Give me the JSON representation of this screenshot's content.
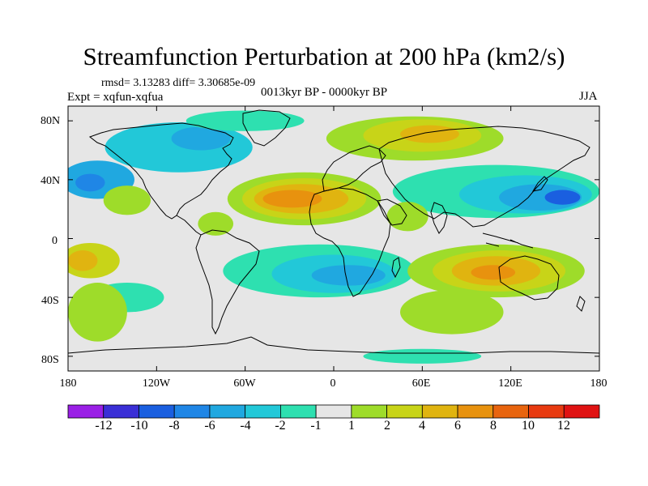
{
  "title": "Streamfunction Perturbation at 200 hPa (km2/s)",
  "stats": "rmsd= 3.13283 diff= 3.30685e-09",
  "experiment": "Expt = xqfun-xqfua",
  "period": "0013kyr BP - 0000kyr BP",
  "season": "JJA",
  "lat_labels": [
    "80N",
    "40N",
    "0",
    "40S",
    "80S"
  ],
  "lon_labels": [
    "180",
    "120W",
    "60W",
    "0",
    "60E",
    "120E",
    "180"
  ],
  "colorbar": {
    "labels": [
      "-12",
      "-10",
      "-8",
      "-6",
      "-4",
      "-2",
      "-1",
      "1",
      "2",
      "4",
      "6",
      "8",
      "10",
      "12"
    ],
    "colors": [
      "#9a1fe6",
      "#3a2fd6",
      "#1a5fe0",
      "#1f86e6",
      "#20a8e0",
      "#22c8d8",
      "#2ee0b0",
      "#e6e6e6",
      "#9edc2a",
      "#c8d418",
      "#e0b410",
      "#e8920e",
      "#e8640e",
      "#e83a10",
      "#e01212"
    ]
  },
  "map": {
    "background_color": "#e6e6e6",
    "regions": [
      {
        "name": "north-pacific-low",
        "level": 4,
        "lon": -160,
        "lat": 40,
        "rlon": 25,
        "rlat": 13
      },
      {
        "name": "north-pacific-low-core",
        "level": 3,
        "lon": -165,
        "lat": 38,
        "rlon": 10,
        "rlat": 6
      },
      {
        "name": "northeast-pacific-green",
        "level": 8,
        "lon": -140,
        "lat": 26,
        "rlon": 16,
        "rlat": 10
      },
      {
        "name": "north-america-low",
        "level": 5,
        "lon": -105,
        "lat": 62,
        "rlon": 50,
        "rlat": 17
      },
      {
        "name": "canada-low-core",
        "level": 4,
        "lon": -90,
        "lat": 68,
        "rlon": 20,
        "rlat": 8
      },
      {
        "name": "arctic-green",
        "level": 6,
        "lon": -60,
        "lat": 80,
        "rlon": 40,
        "rlat": 7
      },
      {
        "name": "caribbean-green",
        "level": 8,
        "lon": -80,
        "lat": 10,
        "rlon": 12,
        "rlat": 8
      },
      {
        "name": "atlantic-high-outer",
        "level": 8,
        "lon": -20,
        "lat": 27,
        "rlon": 52,
        "rlat": 18
      },
      {
        "name": "atlantic-high",
        "level": 9,
        "lon": -20,
        "lat": 27,
        "rlon": 42,
        "rlat": 14
      },
      {
        "name": "atlantic-high-mid",
        "level": 10,
        "lon": -22,
        "lat": 27,
        "rlon": 32,
        "rlat": 10
      },
      {
        "name": "atlantic-high-core",
        "level": 11,
        "lon": -28,
        "lat": 27,
        "rlon": 20,
        "rlat": 6
      },
      {
        "name": "eurasia-high-outer",
        "level": 8,
        "lon": 55,
        "lat": 68,
        "rlon": 60,
        "rlat": 15
      },
      {
        "name": "eurasia-high",
        "level": 9,
        "lon": 60,
        "lat": 70,
        "rlon": 40,
        "rlat": 11
      },
      {
        "name": "eurasia-high-core",
        "level": 10,
        "lon": 65,
        "lat": 71,
        "rlon": 20,
        "rlat": 6
      },
      {
        "name": "asia-low-outer",
        "level": 6,
        "lon": 110,
        "lat": 32,
        "rlon": 70,
        "rlat": 18
      },
      {
        "name": "asia-low",
        "level": 5,
        "lon": 130,
        "lat": 30,
        "rlon": 45,
        "rlat": 13
      },
      {
        "name": "asia-low-mid",
        "level": 4,
        "lon": 140,
        "lat": 28,
        "rlon": 28,
        "rlat": 9
      },
      {
        "name": "asia-low-core",
        "level": 2,
        "lon": 155,
        "lat": 28,
        "rlon": 12,
        "rlat": 5
      },
      {
        "name": "south-america-low-outer",
        "level": 6,
        "lon": -10,
        "lat": -22,
        "rlon": 65,
        "rlat": 18
      },
      {
        "name": "south-atlantic-low",
        "level": 5,
        "lon": 0,
        "lat": -24,
        "rlon": 42,
        "rlat": 13
      },
      {
        "name": "south-atlantic-low-core",
        "level": 4,
        "lon": 10,
        "lat": -25,
        "rlon": 25,
        "rlat": 7
      },
      {
        "name": "south-pacific-low",
        "level": 6,
        "lon": -140,
        "lat": -40,
        "rlon": 25,
        "rlat": 10
      },
      {
        "name": "south-pacific-green",
        "level": 8,
        "lon": -160,
        "lat": -50,
        "rlon": 20,
        "rlat": 20
      },
      {
        "name": "southwest-pacific-high",
        "level": 9,
        "lon": -165,
        "lat": -15,
        "rlon": 20,
        "rlat": 12
      },
      {
        "name": "southwest-pacific-high-core",
        "level": 10,
        "lon": -170,
        "lat": -15,
        "rlon": 10,
        "rlat": 7
      },
      {
        "name": "south-indian-green",
        "level": 8,
        "lon": 80,
        "lat": -50,
        "rlon": 35,
        "rlat": 15
      },
      {
        "name": "australia-high-outer",
        "level": 8,
        "lon": 110,
        "lat": -22,
        "rlon": 60,
        "rlat": 18
      },
      {
        "name": "australia-high",
        "level": 9,
        "lon": 112,
        "lat": -22,
        "rlon": 45,
        "rlat": 14
      },
      {
        "name": "australia-high-mid",
        "level": 10,
        "lon": 110,
        "lat": -22,
        "rlon": 30,
        "rlat": 10
      },
      {
        "name": "australia-high-core",
        "level": 11,
        "lon": 108,
        "lat": -23,
        "rlon": 15,
        "rlat": 5
      },
      {
        "name": "southern-ocean-low",
        "level": 6,
        "lon": 60,
        "lat": -80,
        "rlon": 40,
        "rlat": 5
      },
      {
        "name": "africa-green",
        "level": 8,
        "lon": 50,
        "lat": 15,
        "rlon": 14,
        "rlat": 10
      }
    ]
  }
}
